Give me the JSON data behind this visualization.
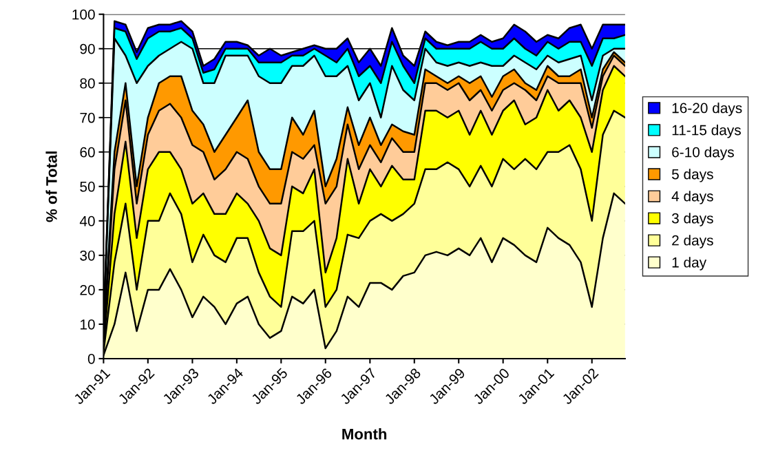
{
  "chart_data": {
    "type": "area",
    "stacked": true,
    "xlabel": "Month",
    "ylabel": "% of Total",
    "x": [
      "1991-01",
      "1991-04",
      "1991-07",
      "1991-10",
      "1992-01",
      "1992-04",
      "1992-07",
      "1992-10",
      "1993-01",
      "1993-04",
      "1993-07",
      "1993-10",
      "1994-01",
      "1994-04",
      "1994-07",
      "1994-10",
      "1995-01",
      "1995-04",
      "1995-07",
      "1995-10",
      "1996-01",
      "1996-04",
      "1996-07",
      "1996-10",
      "1997-01",
      "1997-04",
      "1997-07",
      "1997-10",
      "1998-01",
      "1998-04",
      "1998-07",
      "1998-10",
      "1999-01",
      "1999-04",
      "1999-07",
      "1999-10",
      "2000-01",
      "2000-04",
      "2000-07",
      "2000-10",
      "2001-01",
      "2001-04",
      "2001-07",
      "2001-10",
      "2002-01",
      "2002-04",
      "2002-07",
      "2002-10"
    ],
    "series": [
      {
        "name": "1 day",
        "color": "#ffffcc",
        "values": [
          1,
          10,
          25,
          8,
          20,
          20,
          26,
          20,
          12,
          18,
          15,
          10,
          16,
          18,
          10,
          6,
          8,
          18,
          16,
          20,
          3,
          8,
          18,
          15,
          22,
          22,
          20,
          24,
          25,
          30,
          31,
          30,
          32,
          30,
          35,
          28,
          35,
          33,
          30,
          28,
          38,
          35,
          33,
          28,
          15,
          35,
          48,
          45
        ]
      },
      {
        "name": "2 days",
        "color": "#ffff99",
        "values": [
          1,
          18,
          20,
          12,
          20,
          20,
          22,
          22,
          16,
          18,
          15,
          18,
          19,
          17,
          15,
          12,
          7,
          19,
          21,
          20,
          12,
          12,
          18,
          20,
          18,
          20,
          20,
          18,
          20,
          25,
          24,
          27,
          23,
          20,
          21,
          22,
          23,
          22,
          28,
          27,
          22,
          25,
          29,
          27,
          25,
          30,
          24,
          25
        ]
      },
      {
        "name": "3 days",
        "color": "#ffff00",
        "values": [
          1,
          14,
          18,
          15,
          15,
          20,
          12,
          13,
          17,
          12,
          12,
          14,
          13,
          10,
          15,
          14,
          15,
          13,
          11,
          15,
          10,
          15,
          22,
          10,
          15,
          8,
          16,
          10,
          7,
          17,
          17,
          13,
          17,
          15,
          16,
          15,
          14,
          20,
          10,
          15,
          18,
          12,
          13,
          15,
          20,
          13,
          13,
          12
        ]
      },
      {
        "name": "4 days",
        "color": "#ffcc99",
        "values": [
          2,
          13,
          12,
          10,
          10,
          12,
          14,
          15,
          17,
          12,
          10,
          13,
          12,
          13,
          10,
          13,
          15,
          10,
          10,
          7,
          20,
          15,
          10,
          10,
          7,
          7,
          8,
          8,
          8,
          8,
          8,
          8,
          8,
          10,
          6,
          7,
          6,
          5,
          10,
          5,
          4,
          8,
          5,
          10,
          7,
          4,
          3,
          3
        ]
      },
      {
        "name": "5 days",
        "color": "#ff9900",
        "values": [
          1,
          5,
          5,
          5,
          5,
          8,
          8,
          12,
          10,
          8,
          8,
          10,
          10,
          17,
          10,
          10,
          10,
          10,
          7,
          10,
          5,
          8,
          5,
          7,
          8,
          5,
          4,
          6,
          5,
          4,
          2,
          2,
          2,
          5,
          4,
          4,
          4,
          4,
          2,
          3,
          3,
          2,
          2,
          4,
          3,
          2,
          1,
          1
        ]
      },
      {
        "name": "6-10 days",
        "color": "#ccffff",
        "values": [
          3,
          33,
          8,
          30,
          15,
          8,
          8,
          10,
          18,
          12,
          20,
          23,
          18,
          13,
          22,
          25,
          25,
          15,
          20,
          16,
          32,
          24,
          12,
          13,
          10,
          8,
          17,
          12,
          10,
          6,
          4,
          5,
          4,
          5,
          4,
          9,
          3,
          4,
          6,
          6,
          3,
          4,
          5,
          4,
          5,
          4,
          1,
          4
        ]
      },
      {
        "name": "11-15 days",
        "color": "#00ffff",
        "values": [
          1,
          3,
          7,
          7,
          8,
          7,
          5,
          4,
          3,
          3,
          4,
          2,
          2,
          2,
          4,
          6,
          6,
          3,
          3,
          2,
          6,
          4,
          5,
          7,
          5,
          10,
          7,
          7,
          5,
          3,
          4,
          5,
          4,
          5,
          6,
          5,
          5,
          5,
          4,
          4,
          4,
          4,
          5,
          4,
          10,
          5,
          3,
          4
        ]
      },
      {
        "name": "16-20 days",
        "color": "#0000ff",
        "values": [
          0,
          2,
          2,
          2,
          3,
          2,
          2,
          2,
          2,
          2,
          3,
          2,
          2,
          1,
          2,
          4,
          2,
          1,
          2,
          1,
          2,
          4,
          3,
          4,
          5,
          5,
          4,
          3,
          5,
          2,
          2,
          1,
          2,
          2,
          2,
          2,
          3,
          4,
          5,
          4,
          2,
          3,
          4,
          5,
          5,
          4,
          4,
          3
        ]
      }
    ],
    "xlim": [
      "1991-01",
      "2002-10"
    ],
    "xticks": [
      {
        "value": "1991-01",
        "label": "Jan-91"
      },
      {
        "value": "1992-01",
        "label": "Jan-92"
      },
      {
        "value": "1993-01",
        "label": "Jan-93"
      },
      {
        "value": "1994-01",
        "label": "Jan-94"
      },
      {
        "value": "1995-01",
        "label": "Jan-95"
      },
      {
        "value": "1996-01",
        "label": "Jan-96"
      },
      {
        "value": "1997-01",
        "label": "Jan-97"
      },
      {
        "value": "1998-01",
        "label": "Jan-98"
      },
      {
        "value": "1999-01",
        "label": "Jan-99"
      },
      {
        "value": "2000-01",
        "label": "Jan-00"
      },
      {
        "value": "2001-01",
        "label": "Jan-01"
      },
      {
        "value": "2002-01",
        "label": "Jan-02"
      }
    ],
    "ylim": [
      0,
      100
    ],
    "yticks": [
      0,
      10,
      20,
      30,
      40,
      50,
      60,
      70,
      80,
      90,
      100
    ],
    "grid": "y",
    "legend": "right"
  }
}
